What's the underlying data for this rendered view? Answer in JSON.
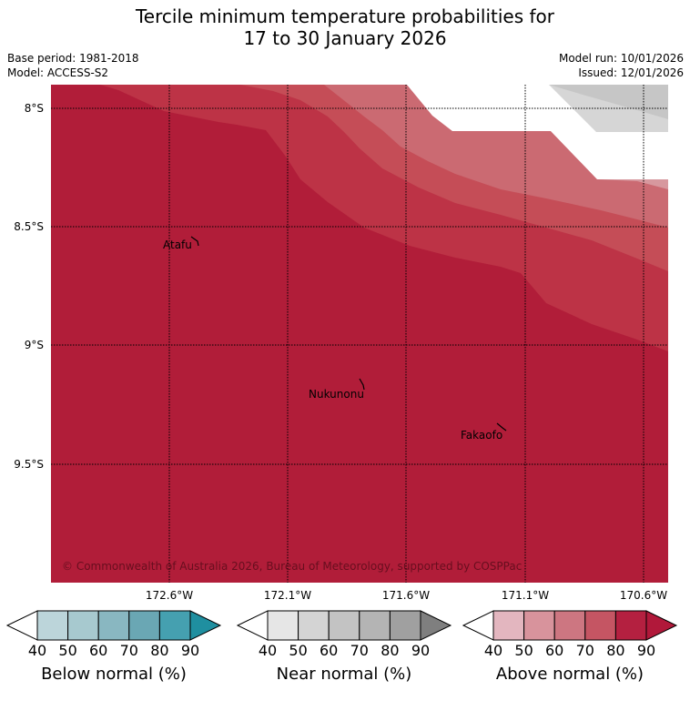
{
  "title": {
    "line1": "Tercile minimum temperature probabilities for",
    "line2": "17 to 30 January 2026"
  },
  "meta": {
    "base_period": "Base period: 1981-2018",
    "model": "Model: ACCESS-S2",
    "model_run": "Model run: 10/01/2026",
    "issued": "Issued: 12/01/2026"
  },
  "map": {
    "lat_labels": [
      "8°S",
      "8.5°S",
      "9°S",
      "9.5°S"
    ],
    "lon_labels": [
      "172.6°W",
      "172.1°W",
      "171.6°W",
      "171.1°W",
      "170.6°W"
    ],
    "places": [
      "Atafu",
      "Nukunonu",
      "Fakaofo"
    ],
    "copyright": "© Commonwealth of Australia 2026, Bureau of Meteorology, supported by COSPPac"
  },
  "colorbars": [
    {
      "name": "Below normal (%)",
      "ticks": [
        "40",
        "50",
        "60",
        "70",
        "80",
        "90"
      ],
      "colors": [
        "#ffffff",
        "#bcd5da",
        "#a7c9cf",
        "#89b7c1",
        "#6aa7b4",
        "#45a0b0",
        "#1f8fa0"
      ]
    },
    {
      "name": "Near normal (%)",
      "ticks": [
        "40",
        "50",
        "60",
        "70",
        "80",
        "90"
      ],
      "colors": [
        "#ffffff",
        "#e6e6e6",
        "#d4d4d4",
        "#c3c3c3",
        "#b4b4b4",
        "#a0a0a0",
        "#7f7f7f"
      ]
    },
    {
      "name": "Above normal (%)",
      "ticks": [
        "40",
        "50",
        "60",
        "70",
        "80",
        "90"
      ],
      "colors": [
        "#ffffff",
        "#e3b6bf",
        "#d8939c",
        "#cd7681",
        "#c55563",
        "#b42040",
        "#b1183a"
      ]
    }
  ],
  "fill_colors": {
    "above_90": "#b11d39",
    "above_80": "#bd3346",
    "above_70": "#c54d57",
    "above_60": "#cb6a72",
    "above_50": "#d7989e",
    "near_50": "#d6d6d6",
    "near_60": "#c6c6c6"
  }
}
